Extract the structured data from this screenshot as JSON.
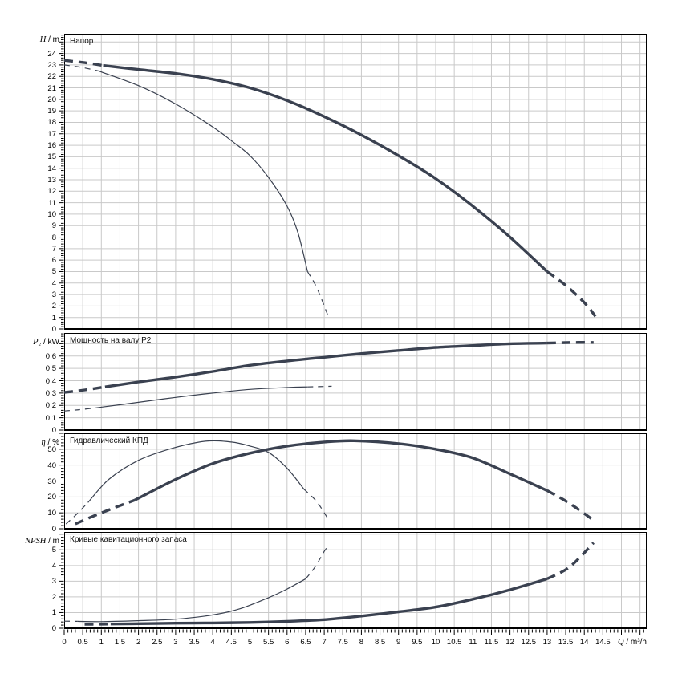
{
  "page": {
    "background": "#ffffff"
  },
  "colors": {
    "curve": "#3a4150",
    "grid": "#c9c9c9",
    "axis": "#000000",
    "text": "#000000"
  },
  "x_axis": {
    "unit_label": "Q / m³/h",
    "tick_labels": [
      "0",
      "0.5",
      "1",
      "1.5",
      "2",
      "2.5",
      "3",
      "3.5",
      "4",
      "4.5",
      "5",
      "5.5",
      "6",
      "6.5",
      "7",
      "7.5",
      "8",
      "8.5",
      "9",
      "9.5",
      "10",
      "10.5",
      "11",
      "11.5",
      "12",
      "12.5",
      "13",
      "13.5",
      "14",
      "14.5"
    ]
  },
  "chart_data": [
    {
      "id": "head",
      "type": "line",
      "title": "Напор",
      "y_axis_label": "H / m",
      "xlim": [
        0,
        15.68
      ],
      "ylim": [
        0,
        25.72
      ],
      "y_major": 1,
      "y_minor": 0.2,
      "y_grid": 1,
      "y_tick_labels": [
        "0",
        "1",
        "2",
        "3",
        "4",
        "5",
        "6",
        "7",
        "8",
        "9",
        "10",
        "11",
        "12",
        "13",
        "14",
        "15",
        "16",
        "17",
        "18",
        "19",
        "20",
        "21",
        "22",
        "23",
        "24"
      ],
      "series": [
        {
          "name": "head-main-speed",
          "width": "thick",
          "segments": [
            {
              "style": "dashed",
              "points": [
                [
                  0,
                  23.4
                ],
                [
                  0.55,
                  23.2
                ],
                [
                  1.05,
                  22.95
                ]
              ]
            },
            {
              "style": "solid",
              "points": [
                [
                  1.05,
                  22.95
                ],
                [
                  2,
                  22.6
                ],
                [
                  3,
                  22.25
                ],
                [
                  4,
                  21.75
                ],
                [
                  5,
                  21.0
                ],
                [
                  6,
                  19.9
                ],
                [
                  7,
                  18.5
                ],
                [
                  8,
                  16.9
                ],
                [
                  9,
                  15.1
                ],
                [
                  10,
                  13.1
                ],
                [
                  11,
                  10.7
                ],
                [
                  12,
                  8.0
                ],
                [
                  13,
                  5.0
                ]
              ]
            },
            {
              "style": "dashed",
              "points": [
                [
                  13,
                  5.0
                ],
                [
                  13.5,
                  3.8
                ],
                [
                  14,
                  2.3
                ],
                [
                  14.3,
                  1.1
                ]
              ]
            }
          ]
        },
        {
          "name": "head-reduced-speed",
          "width": "thin",
          "segments": [
            {
              "style": "dashed",
              "points": [
                [
                  0,
                  23.0
                ],
                [
                  0.45,
                  22.8
                ],
                [
                  0.9,
                  22.5
                ]
              ]
            },
            {
              "style": "solid",
              "points": [
                [
                  0.9,
                  22.5
                ],
                [
                  2,
                  21.2
                ],
                [
                  3,
                  19.6
                ],
                [
                  4,
                  17.6
                ],
                [
                  4.5,
                  16.4
                ],
                [
                  5,
                  15.1
                ],
                [
                  5.5,
                  13.2
                ],
                [
                  6,
                  10.7
                ],
                [
                  6.3,
                  8.3
                ],
                [
                  6.55,
                  5.0
                ]
              ]
            },
            {
              "style": "dashed",
              "points": [
                [
                  6.55,
                  5.0
                ],
                [
                  6.8,
                  3.6
                ],
                [
                  7.12,
                  1.0
                ]
              ]
            }
          ]
        }
      ]
    },
    {
      "id": "power",
      "type": "line",
      "title": "Мощность на валу P2",
      "y_axis_label": "P₂ / kW",
      "xlim": [
        0,
        15.68
      ],
      "ylim": [
        0,
        0.787
      ],
      "y_major": 0.1,
      "y_minor": 0.02,
      "y_grid": 0.1,
      "y_tick_labels": [
        "0",
        "0.1",
        "0.2",
        "0.3",
        "0.4",
        "0.5",
        "0.6"
      ],
      "series": [
        {
          "name": "power-main-speed",
          "width": "thick",
          "segments": [
            {
              "style": "dashed",
              "points": [
                [
                  0,
                  0.305
                ],
                [
                  0.55,
                  0.325
                ],
                [
                  1.1,
                  0.35
                ]
              ]
            },
            {
              "style": "solid",
              "points": [
                [
                  1.1,
                  0.35
                ],
                [
                  2,
                  0.39
                ],
                [
                  3,
                  0.43
                ],
                [
                  4,
                  0.475
                ],
                [
                  5,
                  0.525
                ],
                [
                  6,
                  0.56
                ],
                [
                  7,
                  0.59
                ],
                [
                  8,
                  0.62
                ],
                [
                  9,
                  0.645
                ],
                [
                  10,
                  0.67
                ],
                [
                  11,
                  0.685
                ],
                [
                  12,
                  0.7
                ],
                [
                  13,
                  0.705
                ]
              ]
            },
            {
              "style": "dashed",
              "points": [
                [
                  13,
                  0.705
                ],
                [
                  13.7,
                  0.71
                ],
                [
                  14.25,
                  0.71
                ]
              ]
            }
          ]
        },
        {
          "name": "power-reduced-speed",
          "width": "thin",
          "segments": [
            {
              "style": "dashed",
              "points": [
                [
                  0,
                  0.155
                ],
                [
                  0.4,
                  0.165
                ],
                [
                  0.85,
                  0.18
                ]
              ]
            },
            {
              "style": "solid",
              "points": [
                [
                  0.85,
                  0.18
                ],
                [
                  2,
                  0.225
                ],
                [
                  3,
                  0.265
                ],
                [
                  4,
                  0.3
                ],
                [
                  5,
                  0.33
                ],
                [
                  6,
                  0.345
                ],
                [
                  6.55,
                  0.35
                ]
              ]
            },
            {
              "style": "dashed",
              "points": [
                [
                  6.55,
                  0.35
                ],
                [
                  7.2,
                  0.355
                ]
              ]
            }
          ]
        }
      ]
    },
    {
      "id": "eff",
      "type": "line",
      "title": "Гидравлический КПД",
      "y_axis_label": "η / %",
      "xlim": [
        0,
        15.68
      ],
      "ylim": [
        0,
        60
      ],
      "y_major": 10,
      "y_minor": 2,
      "y_grid": 10,
      "y_tick_labels": [
        "0",
        "10",
        "20",
        "30",
        "40",
        "50"
      ],
      "series": [
        {
          "name": "efficiency-main-speed",
          "width": "thick",
          "segments": [
            {
              "style": "dashed",
              "points": [
                [
                  0.3,
                  3
                ],
                [
                  1,
                  10
                ],
                [
                  1.9,
                  18
                ]
              ]
            },
            {
              "style": "solid",
              "points": [
                [
                  1.9,
                  18
                ],
                [
                  3,
                  31
                ],
                [
                  4,
                  41
                ],
                [
                  5,
                  47.5
                ],
                [
                  6,
                  52
                ],
                [
                  7,
                  54.5
                ],
                [
                  7.8,
                  55.3
                ],
                [
                  9,
                  53.5
                ],
                [
                  10,
                  50
                ],
                [
                  11,
                  44.5
                ],
                [
                  12,
                  34.5
                ],
                [
                  13,
                  24
                ]
              ]
            },
            {
              "style": "dashed",
              "points": [
                [
                  13,
                  24
                ],
                [
                  13.6,
                  16
                ],
                [
                  14.3,
                  4.5
                ]
              ]
            }
          ]
        },
        {
          "name": "efficiency-reduced-speed",
          "width": "thin",
          "segments": [
            {
              "style": "dashed",
              "points": [
                [
                  0.05,
                  3
                ],
                [
                  0.35,
                  9.5
                ],
                [
                  0.64,
                  16.5
                ]
              ]
            },
            {
              "style": "solid",
              "points": [
                [
                  0.64,
                  16.5
                ],
                [
                  1.2,
                  31
                ],
                [
                  2,
                  43
                ],
                [
                  2.9,
                  50.5
                ],
                [
                  3.8,
                  55
                ],
                [
                  4.5,
                  54.5
                ],
                [
                  5,
                  52
                ],
                [
                  5.5,
                  48
                ],
                [
                  6,
                  38
                ],
                [
                  6.45,
                  25
                ]
              ]
            },
            {
              "style": "dashed",
              "points": [
                [
                  6.45,
                  25
                ],
                [
                  6.8,
                  17
                ],
                [
                  7.12,
                  5.5
                ]
              ]
            }
          ]
        }
      ]
    },
    {
      "id": "npsh",
      "type": "line",
      "title": "Кривые кавитационного запаса",
      "y_axis_label": "NPSH / m",
      "xlim": [
        0,
        15.68
      ],
      "ylim": [
        0,
        6.14
      ],
      "y_major": 1,
      "y_minor": 0.2,
      "y_grid": 1,
      "y_tick_labels": [
        "0",
        "1",
        "2",
        "3",
        "4",
        "5"
      ],
      "series": [
        {
          "name": "npsh-main-speed",
          "width": "thick",
          "segments": [
            {
              "style": "dashed",
              "points": [
                [
                  0.55,
                  0.25
                ],
                [
                  0.9,
                  0.26
                ],
                [
                  1.25,
                  0.27
                ]
              ]
            },
            {
              "style": "solid",
              "points": [
                [
                  1.25,
                  0.27
                ],
                [
                  2,
                  0.29
                ],
                [
                  3,
                  0.32
                ],
                [
                  4,
                  0.34
                ],
                [
                  5,
                  0.37
                ],
                [
                  6,
                  0.44
                ],
                [
                  7,
                  0.55
                ],
                [
                  8,
                  0.78
                ],
                [
                  9,
                  1.05
                ],
                [
                  10,
                  1.35
                ],
                [
                  11,
                  1.85
                ],
                [
                  12,
                  2.45
                ],
                [
                  13,
                  3.15
                ]
              ]
            },
            {
              "style": "dashed",
              "points": [
                [
                  13,
                  3.15
                ],
                [
                  13.6,
                  3.9
                ],
                [
                  14.25,
                  5.45
                ]
              ]
            }
          ]
        },
        {
          "name": "npsh-reduced-speed",
          "width": "thin",
          "segments": [
            {
              "style": "dashed",
              "points": [
                [
                  0,
                  0.45
                ],
                [
                  0.35,
                  0.44
                ]
              ]
            },
            {
              "style": "solid",
              "points": [
                [
                  0.35,
                  0.44
                ],
                [
                  1,
                  0.42
                ],
                [
                  2,
                  0.48
                ],
                [
                  3,
                  0.58
                ],
                [
                  4,
                  0.85
                ],
                [
                  4.74,
                  1.25
                ],
                [
                  5.5,
                  1.95
                ],
                [
                  6,
                  2.5
                ],
                [
                  6.5,
                  3.15
                ]
              ]
            },
            {
              "style": "dashed",
              "points": [
                [
                  6.5,
                  3.15
                ],
                [
                  6.75,
                  3.9
                ],
                [
                  7.0,
                  4.9
                ],
                [
                  7.12,
                  5.3
                ]
              ]
            }
          ]
        }
      ]
    }
  ]
}
